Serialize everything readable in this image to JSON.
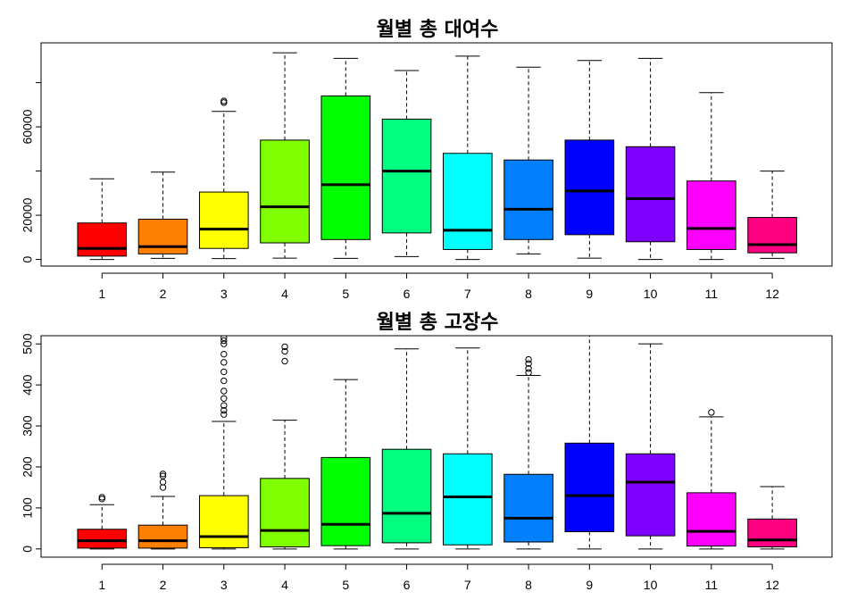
{
  "chart_data": [
    {
      "type": "boxplot",
      "title": "월별 총 대여수",
      "xlabel": "",
      "ylabel": "",
      "categories": [
        "1",
        "2",
        "3",
        "4",
        "5",
        "6",
        "7",
        "8",
        "9",
        "10",
        "11",
        "12"
      ],
      "y_ticks": [
        0,
        20000,
        60000
      ],
      "ylim": [
        -3000,
        98000
      ],
      "colors": [
        "#FF0000",
        "#FF8000",
        "#FFFF00",
        "#80FF00",
        "#00FF00",
        "#00FF80",
        "#00FFFF",
        "#0080FF",
        "#0000FF",
        "#8000FF",
        "#FF00FF",
        "#FF0080"
      ],
      "boxes": [
        {
          "min": 0,
          "q1": 1500,
          "median": 5000,
          "q3": 16500,
          "max": 36500,
          "outliers": []
        },
        {
          "min": 500,
          "q1": 2500,
          "median": 5800,
          "q3": 18200,
          "max": 39500,
          "outliers": []
        },
        {
          "min": 400,
          "q1": 5000,
          "median": 13700,
          "q3": 30500,
          "max": 67000,
          "outliers": [
            71000,
            71700
          ]
        },
        {
          "min": 600,
          "q1": 7500,
          "median": 23800,
          "q3": 54000,
          "max": 93500,
          "outliers": []
        },
        {
          "min": 500,
          "q1": 9000,
          "median": 33800,
          "q3": 74000,
          "max": 91000,
          "outliers": []
        },
        {
          "min": 1300,
          "q1": 12000,
          "median": 40000,
          "q3": 63500,
          "max": 85500,
          "outliers": []
        },
        {
          "min": 0,
          "q1": 4500,
          "median": 13200,
          "q3": 48000,
          "max": 92000,
          "outliers": []
        },
        {
          "min": 2500,
          "q1": 9000,
          "median": 22700,
          "q3": 45000,
          "max": 87000,
          "outliers": []
        },
        {
          "min": 600,
          "q1": 11200,
          "median": 31000,
          "q3": 54000,
          "max": 90000,
          "outliers": []
        },
        {
          "min": 0,
          "q1": 8000,
          "median": 27500,
          "q3": 51000,
          "max": 91000,
          "outliers": []
        },
        {
          "min": 0,
          "q1": 4500,
          "median": 14000,
          "q3": 35500,
          "max": 75500,
          "outliers": []
        },
        {
          "min": 500,
          "q1": 3000,
          "median": 6700,
          "q3": 19000,
          "max": 40000,
          "outliers": []
        }
      ]
    },
    {
      "type": "boxplot",
      "title": "월별 총 고장수",
      "xlabel": "",
      "ylabel": "",
      "categories": [
        "1",
        "2",
        "3",
        "4",
        "5",
        "6",
        "7",
        "8",
        "9",
        "10",
        "11",
        "12"
      ],
      "y_ticks": [
        0,
        100,
        200,
        300,
        400,
        500
      ],
      "ylim": [
        -20,
        520
      ],
      "colors": [
        "#FF0000",
        "#FF8000",
        "#FFFF00",
        "#80FF00",
        "#00FF00",
        "#00FF80",
        "#00FFFF",
        "#0080FF",
        "#0000FF",
        "#8000FF",
        "#FF00FF",
        "#FF0080"
      ],
      "boxes": [
        {
          "min": 0,
          "q1": 2,
          "median": 20,
          "q3": 48,
          "max": 108,
          "outliers": [
            122,
            126
          ]
        },
        {
          "min": 0,
          "q1": 2,
          "median": 20,
          "q3": 58,
          "max": 128,
          "outliers": [
            150,
            163,
            178,
            183
          ]
        },
        {
          "min": 0,
          "q1": 3,
          "median": 30,
          "q3": 130,
          "max": 311,
          "outliers": [
            328,
            338,
            350,
            367,
            385,
            410,
            432,
            455,
            475,
            500,
            508,
            515
          ]
        },
        {
          "min": 0,
          "q1": 5,
          "median": 45,
          "q3": 172,
          "max": 314,
          "outliers": [
            458,
            482,
            493
          ]
        },
        {
          "min": 0,
          "q1": 8,
          "median": 60,
          "q3": 223,
          "max": 413,
          "outliers": []
        },
        {
          "min": 0,
          "q1": 15,
          "median": 87,
          "q3": 243,
          "max": 488,
          "outliers": []
        },
        {
          "min": 0,
          "q1": 10,
          "median": 127,
          "q3": 232,
          "max": 490,
          "outliers": []
        },
        {
          "min": 0,
          "q1": 17,
          "median": 75,
          "q3": 182,
          "max": 423,
          "outliers": [
            430,
            440,
            452,
            462
          ]
        },
        {
          "min": 0,
          "q1": 42,
          "median": 130,
          "q3": 258,
          "max": 525,
          "outliers": []
        },
        {
          "min": 0,
          "q1": 32,
          "median": 163,
          "q3": 232,
          "max": 500,
          "outliers": []
        },
        {
          "min": 0,
          "q1": 7,
          "median": 43,
          "q3": 137,
          "max": 322,
          "outliers": [
            333
          ]
        },
        {
          "min": 0,
          "q1": 5,
          "median": 22,
          "q3": 73,
          "max": 152,
          "outliers": []
        }
      ]
    }
  ]
}
